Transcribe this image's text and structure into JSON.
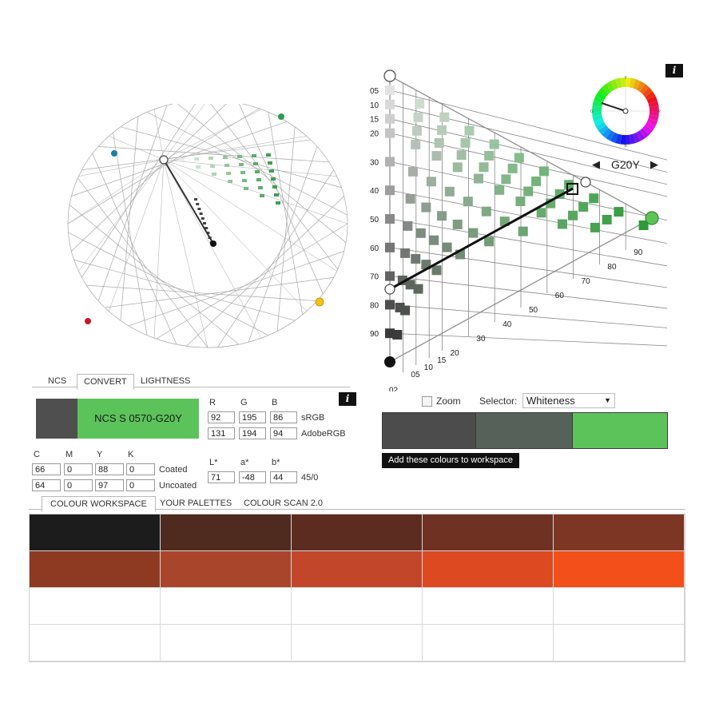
{
  "tabs_top": [
    "NCS",
    "CONVERT",
    "LIGHTNESS"
  ],
  "active_top_tab": "CONVERT",
  "info_label": "i",
  "convert": {
    "swatch_dark": "#4f4f4f",
    "swatch_green": "#5cc35a",
    "ncs_code": "NCS S 0570-G20Y",
    "rgb_headers": [
      "R",
      "G",
      "B"
    ],
    "srgb": {
      "values": [
        "92",
        "195",
        "86"
      ],
      "label": "sRGB"
    },
    "adobergb": {
      "values": [
        "131",
        "194",
        "94"
      ],
      "label": "AdobeRGB"
    },
    "cmyk_headers": [
      "C",
      "M",
      "Y",
      "K"
    ],
    "coated": {
      "values": [
        "66",
        "0",
        "88",
        "0"
      ],
      "label": "Coated"
    },
    "uncoated": {
      "values": [
        "64",
        "0",
        "97",
        "0"
      ],
      "label": "Uncoated"
    },
    "lab_headers": [
      "L*",
      "a*",
      "b*"
    ],
    "lab": {
      "values": [
        "71",
        "-48",
        "44"
      ],
      "label": "45/0"
    }
  },
  "selector": {
    "zoom_label": "Zoom",
    "zoom_checked": false,
    "selector_label": "Selector:",
    "selected": "Whiteness",
    "colors": [
      "#4c4c4c",
      "#566159",
      "#5cc35a"
    ],
    "add_button": "Add these colours to workspace"
  },
  "tabs_bottom": [
    "COLOUR WORKSPACE",
    "YOUR PALETTES",
    "COLOUR SCAN 2.0"
  ],
  "active_bottom_tab": "COLOUR WORKSPACE",
  "workspace": {
    "row1": [
      "#1d1c1c",
      "#4e2a1f",
      "#5d2c20",
      "#6f3222",
      "#7d3624"
    ],
    "row2": [
      "#8e3a23",
      "#a9452a",
      "#c2472a",
      "#dd4a22",
      "#f34f1a"
    ]
  },
  "triangle": {
    "hue_label": "G20Y",
    "left_ticks": [
      "05",
      "10",
      "15",
      "20",
      "30",
      "40",
      "50",
      "60",
      "70",
      "80",
      "90"
    ],
    "bottom_ticks": [
      "02",
      "05",
      "10",
      "15",
      "20",
      "30",
      "40",
      "50",
      "60",
      "70",
      "80",
      "90"
    ],
    "wheel_letters": [
      "Y",
      "R",
      "B",
      "G"
    ]
  },
  "colors": {
    "tab_border": "#b9b9b9",
    "green": "#5cc35a",
    "dot_blue": "#1b7ea3",
    "dot_green": "#2e9a55",
    "dot_red": "#c01a2a",
    "dot_yellow": "#f1c21b"
  }
}
